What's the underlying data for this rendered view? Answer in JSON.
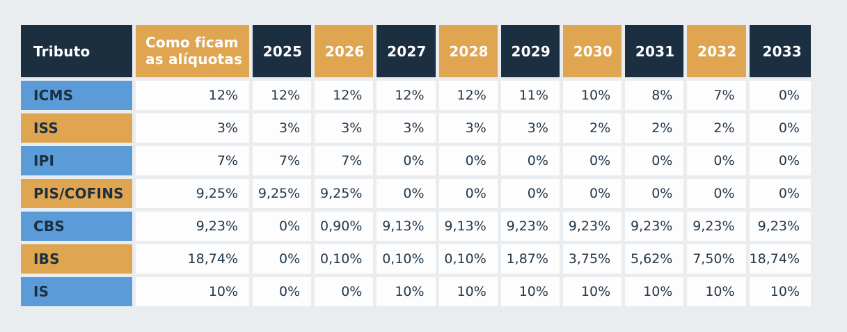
{
  "chart_data": {
    "type": "table",
    "header": {
      "tributo": "Tributo",
      "aliquotas": [
        "Como ficam",
        "as alíquotas"
      ]
    },
    "years": [
      "2025",
      "2026",
      "2027",
      "2028",
      "2029",
      "2030",
      "2031",
      "2032",
      "2033"
    ],
    "rows": [
      {
        "label": "ICMS",
        "aliquota": "12%",
        "values": [
          "12%",
          "12%",
          "12%",
          "12%",
          "11%",
          "10%",
          "8%",
          "7%",
          "0%"
        ]
      },
      {
        "label": "ISS",
        "aliquota": "3%",
        "values": [
          "3%",
          "3%",
          "3%",
          "3%",
          "3%",
          "2%",
          "2%",
          "2%",
          "0%"
        ]
      },
      {
        "label": "IPI",
        "aliquota": "7%",
        "values": [
          "7%",
          "7%",
          "0%",
          "0%",
          "0%",
          "0%",
          "0%",
          "0%",
          "0%"
        ]
      },
      {
        "label": "PIS/COFINS",
        "aliquota": "9,25%",
        "values": [
          "9,25%",
          "9,25%",
          "0%",
          "0%",
          "0%",
          "0%",
          "0%",
          "0%",
          "0%"
        ]
      },
      {
        "label": "CBS",
        "aliquota": "9,23%",
        "values": [
          "0%",
          "0,90%",
          "9,13%",
          "9,13%",
          "9,23%",
          "9,23%",
          "9,23%",
          "9,23%",
          "9,23%"
        ]
      },
      {
        "label": "IBS",
        "aliquota": "18,74%",
        "values": [
          "0%",
          "0,10%",
          "0,10%",
          "0,10%",
          "1,87%",
          "3,75%",
          "5,62%",
          "7,50%",
          "18,74%"
        ]
      },
      {
        "label": "IS",
        "aliquota": "10%",
        "values": [
          "0%",
          "0%",
          "10%",
          "10%",
          "10%",
          "10%",
          "10%",
          "10%",
          "10%"
        ]
      }
    ],
    "colors": {
      "header_dark": "#1b2f41",
      "header_gold": "#dfa551",
      "label_blue": "#5b9bd8",
      "label_gold": "#dfa551",
      "cell_bg": "#fdfdfe",
      "text_dark": "#223749",
      "page_bg": "#e9edf0"
    },
    "layout": {
      "grid": "off",
      "header_column_pattern": "dark/gold alternating starting dark",
      "row_label_pattern": "blue/gold alternating starting blue"
    }
  }
}
